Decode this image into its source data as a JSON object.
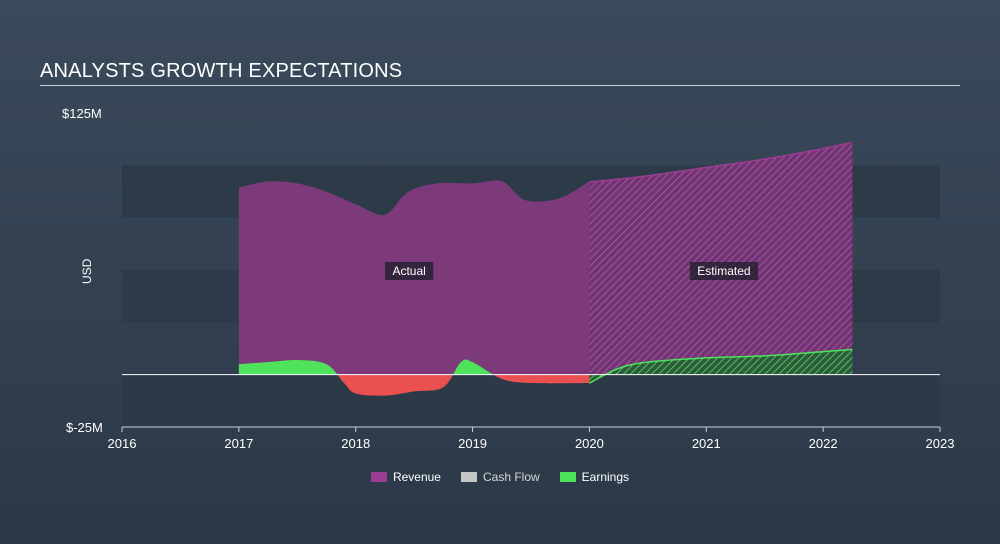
{
  "title": "ANALYSTS GROWTH EXPECTATIONS",
  "chart_data": {
    "type": "area",
    "ylabel": "USD",
    "ylim": [
      -25,
      125
    ],
    "y_tick_labels": [
      "$125M",
      "$-25M"
    ],
    "xlim": [
      2016,
      2023
    ],
    "x_ticks": [
      "2016",
      "2017",
      "2018",
      "2019",
      "2020",
      "2021",
      "2022",
      "2023"
    ],
    "regions": [
      {
        "label": "Actual",
        "from": 2017.0,
        "to": 2020.0
      },
      {
        "label": "Estimated",
        "from": 2020.0,
        "to": 2022.25
      }
    ],
    "legend_position": "bottom-center",
    "series": [
      {
        "name": "Revenue",
        "color": "#9b3d95",
        "points": [
          [
            2017.0,
            89
          ],
          [
            2017.25,
            92
          ],
          [
            2017.5,
            91
          ],
          [
            2017.75,
            87
          ],
          [
            2018.0,
            81
          ],
          [
            2018.25,
            76
          ],
          [
            2018.45,
            87
          ],
          [
            2018.7,
            91
          ],
          [
            2019.0,
            91
          ],
          [
            2019.25,
            92
          ],
          [
            2019.45,
            83
          ],
          [
            2019.75,
            84
          ],
          [
            2020.0,
            92
          ],
          [
            2020.5,
            95
          ],
          [
            2021.0,
            99
          ],
          [
            2021.5,
            103
          ],
          [
            2022.0,
            108
          ],
          [
            2022.25,
            111
          ]
        ]
      },
      {
        "name": "Cash Flow",
        "color": "#c6c6c6",
        "points": []
      },
      {
        "name": "Earnings",
        "color": "#4ee35b",
        "points": [
          [
            2017.0,
            5
          ],
          [
            2017.25,
            6
          ],
          [
            2017.5,
            7
          ],
          [
            2017.75,
            5
          ],
          [
            2017.9,
            -4
          ],
          [
            2018.0,
            -9
          ],
          [
            2018.25,
            -10
          ],
          [
            2018.5,
            -8
          ],
          [
            2018.75,
            -6
          ],
          [
            2018.9,
            6
          ],
          [
            2019.0,
            6
          ],
          [
            2019.25,
            -2
          ],
          [
            2019.5,
            -4
          ],
          [
            2020.0,
            -4
          ],
          [
            2020.25,
            3
          ],
          [
            2020.5,
            6
          ],
          [
            2021.0,
            8
          ],
          [
            2021.5,
            9
          ],
          [
            2022.0,
            11
          ],
          [
            2022.25,
            12
          ]
        ]
      }
    ]
  },
  "legend": [
    {
      "label": "Revenue",
      "color": "#9b3d95"
    },
    {
      "label": "Cash Flow",
      "color": "#c6c6c6"
    },
    {
      "label": "Earnings",
      "color": "#4ee35b"
    }
  ]
}
